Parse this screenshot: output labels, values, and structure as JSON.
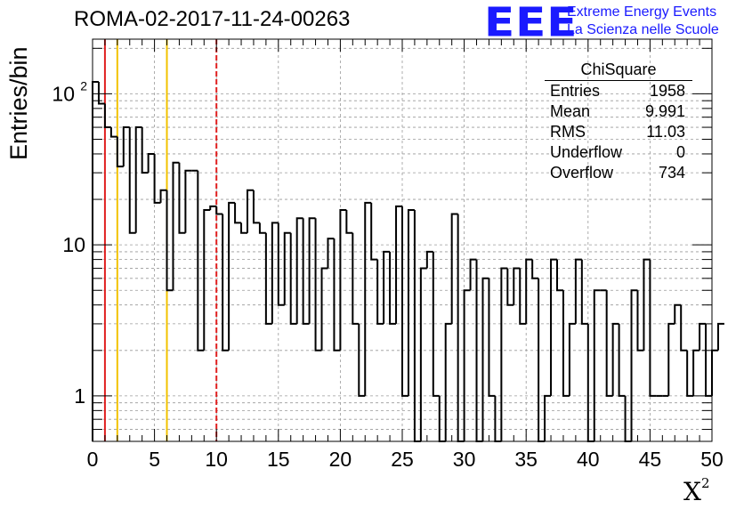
{
  "header": {
    "title": "ROMA-02-2017-11-24-00263",
    "logo": "EEE",
    "logo_line1": "Extreme Energy Events",
    "logo_line2": "La Scienza nelle Scuole"
  },
  "stats_box": {
    "title": "ChiSquare",
    "rows": [
      {
        "label": "Entries",
        "value": "1958"
      },
      {
        "label": "Mean",
        "value": "9.991"
      },
      {
        "label": "RMS",
        "value": "11.03"
      },
      {
        "label": "Underflow",
        "value": "0"
      },
      {
        "label": "Overflow",
        "value": "734"
      }
    ]
  },
  "chart_data": {
    "type": "histogram",
    "title": "ROMA-02-2017-11-24-00263",
    "xlabel": "X",
    "xlabel_superscript": "2",
    "ylabel": "Entries/bin",
    "xlim": [
      0,
      50
    ],
    "ylim": [
      0.5,
      230
    ],
    "yscale": "log",
    "grid": true,
    "bin_width": 0.5,
    "x_ticks": [
      "0",
      "5",
      "10",
      "15",
      "20",
      "25",
      "30",
      "35",
      "40",
      "45",
      "50"
    ],
    "y_ticks": [
      {
        "value": 1,
        "label": "1"
      },
      {
        "value": 10,
        "label": "10"
      },
      {
        "value": 100,
        "label": "10",
        "exp": "2"
      }
    ],
    "values": [
      120,
      86,
      60,
      52,
      33,
      60,
      12,
      60,
      30,
      40,
      19,
      23,
      5,
      35,
      12,
      31,
      31,
      2,
      17,
      18,
      16,
      2,
      19,
      14,
      12,
      23,
      14,
      12,
      3,
      14,
      4,
      12,
      3,
      15,
      3,
      15,
      2,
      7,
      11,
      2,
      17,
      12,
      3,
      1,
      19,
      8,
      3,
      9,
      3,
      18,
      1,
      17,
      0,
      7,
      9,
      1,
      0,
      3,
      16,
      0,
      5,
      8,
      0,
      6,
      1,
      0,
      7,
      4,
      7,
      3,
      8,
      6,
      0,
      1,
      8,
      5,
      1,
      3,
      8,
      3,
      0,
      5,
      5,
      1,
      3,
      1,
      0,
      5,
      2,
      8,
      1,
      1,
      1,
      3,
      4,
      2,
      1,
      2,
      3,
      1,
      2,
      3
    ],
    "reference_lines": [
      {
        "x": 1,
        "color": "#e02020",
        "style": "solid"
      },
      {
        "x": 2,
        "color": "#f2c200",
        "style": "solid"
      },
      {
        "x": 6,
        "color": "#f2c200",
        "style": "solid"
      },
      {
        "x": 10,
        "color": "#e02020",
        "style": "dashed"
      }
    ],
    "line_color": "#000000"
  }
}
